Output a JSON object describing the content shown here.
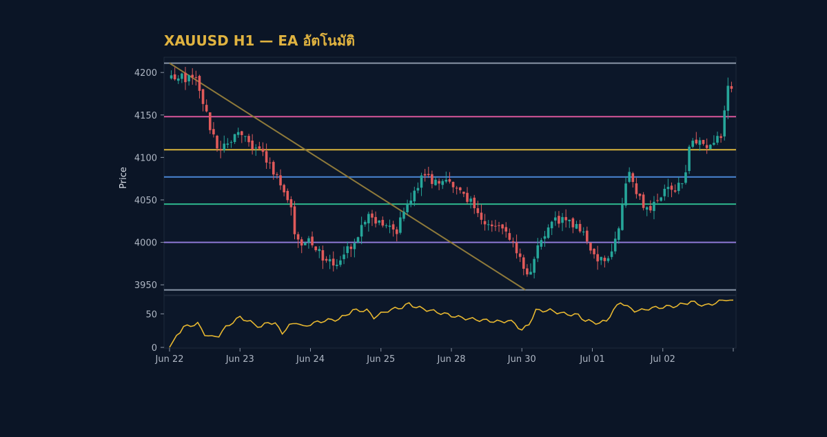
{
  "chart_data": {
    "type": "candlestick",
    "title": "XAUUSD H1 — EA อัตโนมัติ",
    "ylabel": "Price",
    "price_ylim": [
      3938,
      4218
    ],
    "price_yticks": [
      3950,
      4000,
      4050,
      4100,
      4150,
      4200
    ],
    "osc_ylim": [
      -1,
      77
    ],
    "osc_yticks": [
      0,
      50
    ],
    "x_range": [
      0,
      160
    ],
    "xticks": [
      {
        "x": 0,
        "label": "Jun 22"
      },
      {
        "x": 20,
        "label": "Jun 23"
      },
      {
        "x": 40,
        "label": "Jun 24"
      },
      {
        "x": 60,
        "label": "Jun 25"
      },
      {
        "x": 80,
        "label": "Jun 28"
      },
      {
        "x": 100,
        "label": "Jun 30"
      },
      {
        "x": 120,
        "label": "Jul 01"
      },
      {
        "x": 140,
        "label": "Jul 02"
      },
      {
        "x": 160,
        "label": ""
      }
    ],
    "levels": [
      {
        "value": 4211,
        "color": "#8a97a8"
      },
      {
        "value": 4148,
        "color": "#d9579a"
      },
      {
        "value": 4109,
        "color": "#d9b43c"
      },
      {
        "value": 4077,
        "color": "#4a86d4"
      },
      {
        "value": 4045,
        "color": "#2fb88e"
      },
      {
        "value": 4000,
        "color": "#8f7ad6"
      },
      {
        "value": 3944,
        "color": "#8a97a8"
      }
    ],
    "trendline": {
      "from": [
        0,
        4211
      ],
      "to": [
        101,
        3944
      ],
      "color": "#8f7a3a"
    },
    "colors": {
      "up": "#26a69a",
      "down": "#e05a5a",
      "osc": "#e8b830",
      "title": "#e0b340"
    },
    "close_path": [
      [
        0,
        4195
      ],
      [
        8,
        4192
      ],
      [
        10,
        4155
      ],
      [
        14,
        4110
      ],
      [
        20,
        4128
      ],
      [
        26,
        4105
      ],
      [
        30,
        4080
      ],
      [
        34,
        4050
      ],
      [
        36,
        4000
      ],
      [
        40,
        4005
      ],
      [
        44,
        3975
      ],
      [
        48,
        3980
      ],
      [
        52,
        3996
      ],
      [
        56,
        4030
      ],
      [
        60,
        4026
      ],
      [
        64,
        4010
      ],
      [
        68,
        4048
      ],
      [
        72,
        4080
      ],
      [
        76,
        4070
      ],
      [
        80,
        4068
      ],
      [
        84,
        4055
      ],
      [
        88,
        4030
      ],
      [
        92,
        4018
      ],
      [
        96,
        4010
      ],
      [
        100,
        3980
      ],
      [
        102,
        3958
      ],
      [
        104,
        3990
      ],
      [
        108,
        4025
      ],
      [
        112,
        4025
      ],
      [
        116,
        4020
      ],
      [
        120,
        3985
      ],
      [
        124,
        3975
      ],
      [
        126,
        3990
      ],
      [
        128,
        4030
      ],
      [
        130,
        4090
      ],
      [
        132,
        4065
      ],
      [
        134,
        4045
      ],
      [
        136,
        4040
      ],
      [
        140,
        4060
      ],
      [
        144,
        4065
      ],
      [
        146,
        4068
      ],
      [
        148,
        4125
      ],
      [
        152,
        4110
      ],
      [
        155,
        4120
      ],
      [
        157,
        4130
      ],
      [
        158,
        4180
      ],
      [
        160,
        4175
      ]
    ],
    "osc_path": [
      [
        0,
        0
      ],
      [
        2,
        18
      ],
      [
        4,
        30
      ],
      [
        6,
        33
      ],
      [
        8,
        35
      ],
      [
        10,
        20
      ],
      [
        12,
        15
      ],
      [
        14,
        18
      ],
      [
        16,
        30
      ],
      [
        18,
        38
      ],
      [
        20,
        45
      ],
      [
        22,
        40
      ],
      [
        24,
        35
      ],
      [
        26,
        30
      ],
      [
        28,
        38
      ],
      [
        30,
        35
      ],
      [
        32,
        22
      ],
      [
        34,
        32
      ],
      [
        36,
        38
      ],
      [
        38,
        30
      ],
      [
        40,
        35
      ],
      [
        44,
        40
      ],
      [
        48,
        42
      ],
      [
        50,
        48
      ],
      [
        52,
        55
      ],
      [
        56,
        55
      ],
      [
        58,
        45
      ],
      [
        60,
        50
      ],
      [
        62,
        55
      ],
      [
        66,
        60
      ],
      [
        68,
        65
      ],
      [
        70,
        60
      ],
      [
        74,
        55
      ],
      [
        78,
        50
      ],
      [
        82,
        45
      ],
      [
        86,
        42
      ],
      [
        90,
        40
      ],
      [
        94,
        38
      ],
      [
        96,
        40
      ],
      [
        98,
        36
      ],
      [
        100,
        25
      ],
      [
        102,
        35
      ],
      [
        104,
        55
      ],
      [
        108,
        55
      ],
      [
        112,
        50
      ],
      [
        116,
        48
      ],
      [
        118,
        40
      ],
      [
        120,
        38
      ],
      [
        122,
        36
      ],
      [
        124,
        40
      ],
      [
        126,
        55
      ],
      [
        128,
        68
      ],
      [
        130,
        60
      ],
      [
        132,
        55
      ],
      [
        134,
        55
      ],
      [
        136,
        58
      ],
      [
        140,
        60
      ],
      [
        144,
        62
      ],
      [
        146,
        65
      ],
      [
        148,
        68
      ],
      [
        152,
        62
      ],
      [
        154,
        65
      ],
      [
        156,
        68
      ],
      [
        158,
        72
      ],
      [
        160,
        68
      ]
    ]
  }
}
